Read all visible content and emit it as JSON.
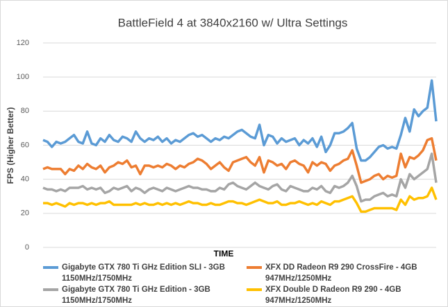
{
  "chart_data": {
    "type": "line",
    "title": "BattleField 4 at 3840x2160 w/ Ultra Settings",
    "xlabel": "TIME",
    "ylabel": "FPS (Higher Better)",
    "ylim": [
      0,
      120
    ],
    "yticks": [
      0,
      20,
      40,
      60,
      80,
      100,
      120
    ],
    "grid": true,
    "series": [
      {
        "name": "Gigabyte GTX 780 Ti GHz Edition SLI - 3GB\n1150MHz/1750MHz",
        "color": "#5b9bd5",
        "values": [
          63,
          62,
          59,
          62,
          61,
          62,
          64,
          66,
          62,
          61,
          68,
          61,
          60,
          64,
          62,
          66,
          63,
          62,
          65,
          64,
          62,
          68,
          64,
          62,
          64,
          63,
          65,
          62,
          64,
          61,
          63,
          62,
          64,
          66,
          67,
          65,
          66,
          64,
          62,
          64,
          63,
          65,
          64,
          66,
          68,
          69,
          67,
          65,
          64,
          72,
          60,
          66,
          65,
          61,
          64,
          62,
          63,
          64,
          60,
          63,
          61,
          64,
          59,
          65,
          56,
          60,
          67,
          67,
          68,
          70,
          73,
          58,
          51,
          51,
          53,
          56,
          59,
          60,
          58,
          59,
          58,
          66,
          76,
          68,
          81,
          77,
          80,
          82,
          98,
          74
        ]
      },
      {
        "name": "XFX DD Radeon R9 290 CrossFire - 4GB\n947MHz/1250MHz",
        "color": "#ed7d31",
        "values": [
          46,
          47,
          46,
          46,
          46,
          43,
          46,
          45,
          48,
          46,
          49,
          47,
          46,
          48,
          44,
          47,
          48,
          50,
          49,
          51,
          47,
          48,
          43,
          48,
          48,
          47,
          48,
          47,
          49,
          48,
          46,
          48,
          47,
          49,
          50,
          52,
          51,
          49,
          46,
          48,
          50,
          47,
          45,
          50,
          51,
          52,
          53,
          50,
          48,
          53,
          44,
          51,
          50,
          48,
          49,
          46,
          50,
          51,
          49,
          48,
          44,
          50,
          48,
          50,
          49,
          45,
          48,
          49,
          51,
          52,
          57,
          48,
          38,
          39,
          40,
          42,
          43,
          40,
          42,
          41,
          42,
          55,
          47,
          53,
          52,
          54,
          57,
          63,
          64,
          51
        ]
      },
      {
        "name": "Gigabyte GTX 780 Ti GHz Edition - 3GB\n1150MHz/1750MHz",
        "color": "#a5a5a5",
        "values": [
          35,
          34,
          34,
          33,
          34,
          33,
          35,
          35,
          35,
          36,
          34,
          35,
          34,
          35,
          32,
          33,
          35,
          34,
          35,
          36,
          33,
          35,
          34,
          32,
          34,
          35,
          34,
          33,
          35,
          34,
          33,
          34,
          35,
          36,
          35,
          35,
          34,
          34,
          33,
          33,
          35,
          34,
          37,
          38,
          36,
          35,
          34,
          36,
          38,
          36,
          35,
          34,
          36,
          37,
          34,
          33,
          36,
          35,
          34,
          33,
          33,
          35,
          34,
          36,
          33,
          32,
          36,
          35,
          36,
          38,
          42,
          36,
          27,
          28,
          28,
          30,
          31,
          32,
          30,
          31,
          30,
          40,
          35,
          43,
          40,
          42,
          44,
          46,
          55,
          38
        ]
      },
      {
        "name": "XFX Double D Radeon R9 290 - 4GB\n947MHz/1250MHz",
        "color": "#ffc000",
        "values": [
          26,
          26,
          25,
          26,
          25,
          24,
          26,
          25,
          26,
          26,
          25,
          26,
          25,
          26,
          26,
          27,
          25,
          25,
          25,
          25,
          25,
          26,
          25,
          26,
          25,
          25,
          26,
          25,
          26,
          25,
          26,
          25,
          26,
          27,
          26,
          26,
          25,
          25,
          26,
          25,
          25,
          26,
          27,
          27,
          26,
          26,
          25,
          26,
          27,
          28,
          27,
          26,
          26,
          27,
          25,
          25,
          26,
          26,
          27,
          26,
          25,
          26,
          25,
          27,
          26,
          25,
          27,
          27,
          28,
          29,
          30,
          26,
          21,
          21,
          22,
          23,
          23,
          23,
          23,
          23,
          22,
          28,
          25,
          30,
          28,
          29,
          29,
          30,
          35,
          28
        ]
      }
    ]
  }
}
